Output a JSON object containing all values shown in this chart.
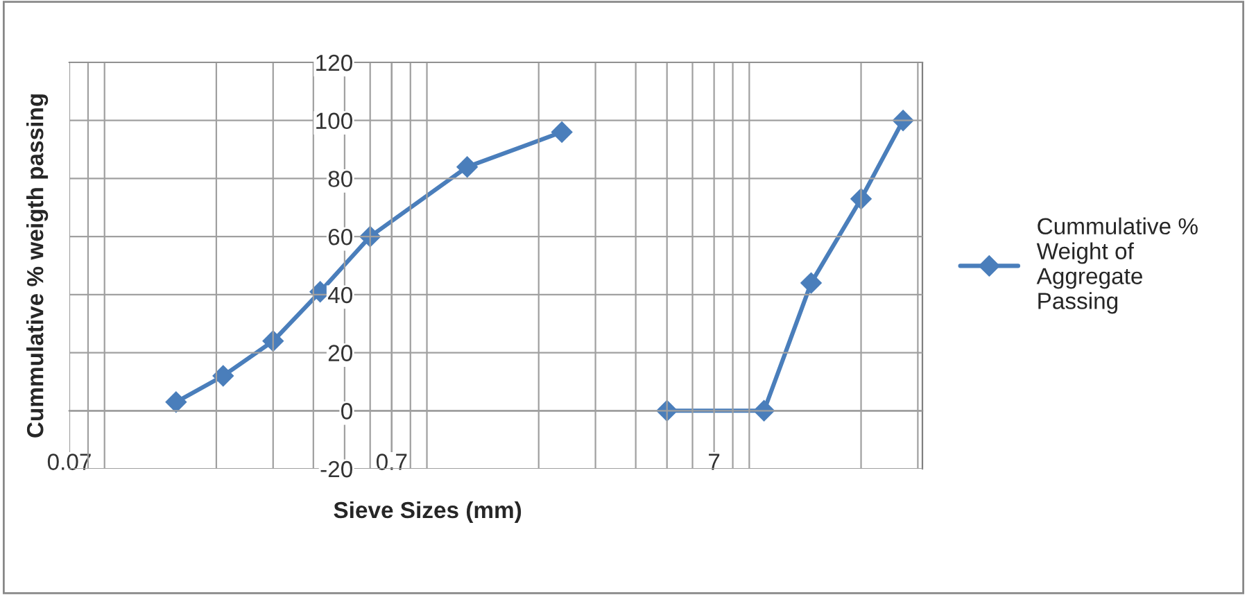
{
  "chart_data": {
    "type": "line",
    "xlabel": "Sieve Sizes (mm)",
    "ylabel": "Cummulative % weigth passing",
    "log": "x",
    "xlim": [
      0.07,
      31
    ],
    "xticks": [
      0.07,
      0.7,
      7
    ],
    "ylim": [
      -20,
      120
    ],
    "yticks": [
      -20,
      0,
      20,
      40,
      60,
      80,
      100,
      120
    ],
    "grid": true,
    "legend": "right",
    "marker": "diamond",
    "line_style": "solid",
    "series": [
      {
        "name": "Cummulative % Weight of Aggregate Passing",
        "color": "#4a7ebb",
        "x": [
          0.15,
          0.21,
          0.3,
          0.42,
          0.6,
          1.2,
          2.36,
          3.5,
          5.0,
          10,
          14,
          20,
          27
        ],
        "values": [
          3,
          12,
          24,
          41,
          60,
          84,
          96,
          null,
          0,
          0,
          44,
          73,
          100
        ]
      }
    ]
  }
}
